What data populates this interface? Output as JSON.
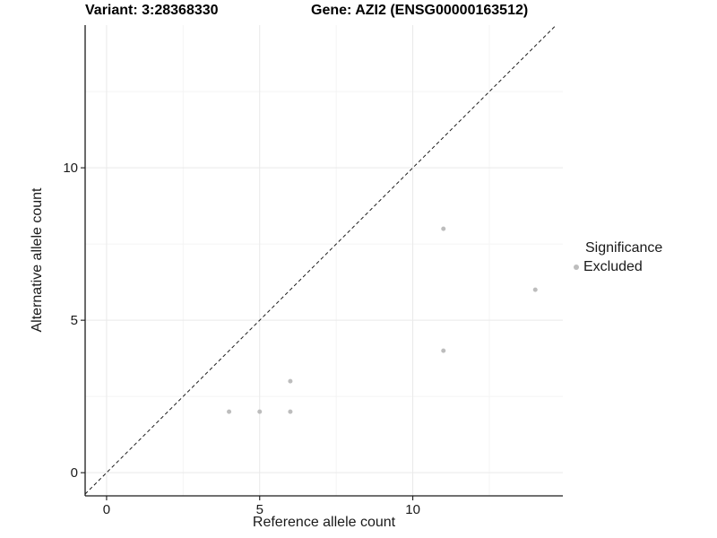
{
  "chart_data": {
    "type": "scatter",
    "titles": {
      "left": "Variant: 3:28368330",
      "right": "Gene: AZI2 (ENSG00000163512)"
    },
    "xlabel": "Reference allele count",
    "ylabel": "Alternative allele count",
    "xlim": [
      -0.7,
      14.9
    ],
    "ylim": [
      -0.76,
      14.68
    ],
    "xticks": [
      0,
      5,
      10
    ],
    "yticks": [
      0,
      5,
      10
    ],
    "xminor": [
      2.5,
      7.5,
      12.5
    ],
    "yminor": [
      2.5,
      7.5,
      12.5
    ],
    "grid": "major+minor",
    "reference_line": {
      "type": "identity",
      "style": "dashed",
      "color": "#1a1a1a"
    },
    "series": [
      {
        "name": "Excluded",
        "color": "#bdbdbd",
        "points": [
          [
            4,
            2
          ],
          [
            5,
            2
          ],
          [
            6,
            2
          ],
          [
            6,
            3
          ],
          [
            11,
            4
          ],
          [
            11,
            8
          ],
          [
            14,
            6
          ]
        ]
      }
    ],
    "legend": {
      "title": "Significance",
      "position": "right",
      "entries": [
        {
          "label": "Excluded",
          "color": "#bdbdbd"
        }
      ]
    }
  },
  "colors": {
    "background": "#ffffff",
    "axis": "#1a1a1a",
    "text": "#1a1a1a",
    "grid_major": "#e9e9e9",
    "grid_minor": "#f4f4f4"
  }
}
